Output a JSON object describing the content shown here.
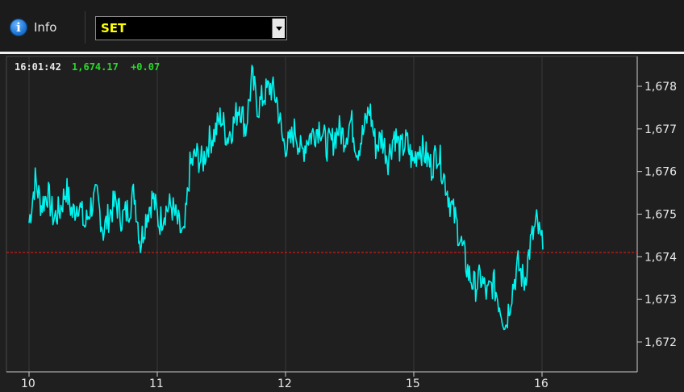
{
  "toolbar": {
    "info_label": "Info",
    "symbol_value": "SET"
  },
  "header": {
    "time": "16:01:42",
    "price": "1,674.17",
    "change": "+0.07"
  },
  "colors": {
    "line": "#00f5f0",
    "reference_line": "#e01818",
    "grid": "#3a3a3a",
    "text": "#e8e8e8",
    "up": "#2bd92b"
  },
  "chart_data": {
    "type": "line",
    "x_ticks": [
      "10",
      "11",
      "12",
      "15",
      "16"
    ],
    "y_ticks": [
      "1,678",
      "1,677",
      "1,676",
      "1,675",
      "1,674",
      "1,673",
      "1,672"
    ],
    "y_tick_values": [
      1678,
      1677,
      1676,
      1675,
      1674,
      1673,
      1672
    ],
    "ylim": [
      1671.3,
      1678.7
    ],
    "reference_value": 1674.1,
    "series": [
      {
        "values": [
          1674.8,
          1675.8,
          1675.2,
          1675.5,
          1674.9,
          1675.1,
          1675.6,
          1675.0,
          1675.3,
          1674.7,
          1675.2,
          1675.4,
          1674.6,
          1675.0,
          1675.3,
          1674.9,
          1675.1,
          1675.5,
          1674.3,
          1675.0,
          1675.4,
          1674.8,
          1675.1,
          1675.2,
          1674.8,
          1674.4,
          1676.1,
          1676.4,
          1676.2,
          1676.7,
          1676.9,
          1677.3,
          1676.8,
          1677.1,
          1677.6,
          1677.0,
          1678.2,
          1677.5,
          1677.8,
          1678.0,
          1677.7,
          1676.7,
          1676.6,
          1677.0,
          1676.4,
          1676.8,
          1676.9,
          1677.1,
          1676.6,
          1676.7,
          1677.0,
          1676.8,
          1677.2,
          1676.5,
          1676.9,
          1677.5,
          1676.6,
          1676.8,
          1676.3,
          1676.9,
          1676.5,
          1676.7,
          1676.2,
          1676.6,
          1676.4,
          1676.1,
          1676.5,
          1675.9,
          1675.3,
          1674.8,
          1674.2,
          1673.6,
          1673.3,
          1673.5,
          1673.1,
          1673.4,
          1672.9,
          1672.4,
          1673.2,
          1673.8,
          1673.4,
          1674.3,
          1674.8,
          1674.17
        ]
      }
    ]
  }
}
